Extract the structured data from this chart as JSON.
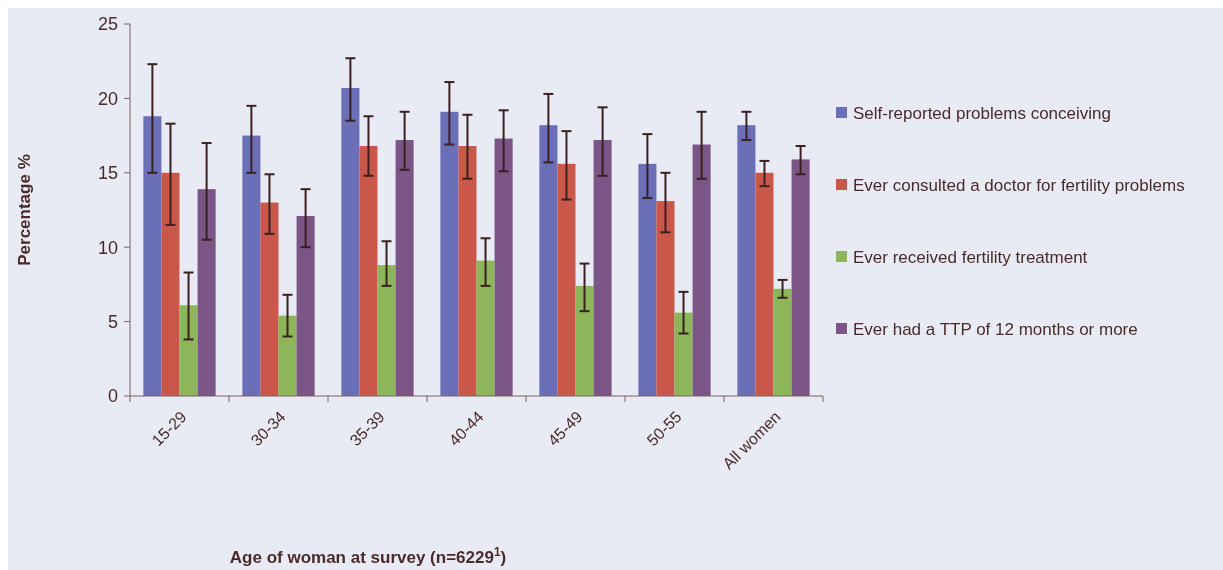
{
  "chart_data": {
    "type": "bar",
    "xlabel": "Age of woman at survey (n=6229$^{1}$)",
    "ylabel": "Percentage %",
    "categories": [
      "15-29",
      "30-34",
      "35-39",
      "40-44",
      "45-49",
      "50-55",
      "All women"
    ],
    "ylim": [
      0,
      25
    ],
    "yticks": [
      0,
      5,
      10,
      15,
      20,
      25
    ],
    "grid": false,
    "legend": "right",
    "series": [
      {
        "name": "Self-reported problems conceiving",
        "color": "#6a6fb8",
        "values": [
          18.8,
          17.5,
          20.7,
          19.1,
          18.2,
          15.6,
          18.2
        ],
        "errors": [
          [
            15.0,
            22.3
          ],
          [
            15.0,
            19.5
          ],
          [
            18.5,
            22.7
          ],
          [
            16.9,
            21.1
          ],
          [
            15.7,
            20.3
          ],
          [
            13.3,
            17.6
          ],
          [
            17.2,
            19.1
          ]
        ]
      },
      {
        "name": "Ever consulted a doctor for fertility problems",
        "color": "#c9584a",
        "values": [
          15.0,
          13.0,
          16.8,
          16.8,
          15.6,
          13.1,
          15.0
        ],
        "errors": [
          [
            11.5,
            18.3
          ],
          [
            10.9,
            14.9
          ],
          [
            14.8,
            18.8
          ],
          [
            14.6,
            18.9
          ],
          [
            13.2,
            17.8
          ],
          [
            11.0,
            15.0
          ],
          [
            14.1,
            15.8
          ]
        ]
      },
      {
        "name": "Ever received fertility treatment",
        "color": "#8db65a",
        "values": [
          6.1,
          5.4,
          8.8,
          9.1,
          7.4,
          5.6,
          7.2
        ],
        "errors": [
          [
            3.8,
            8.3
          ],
          [
            4.0,
            6.8
          ],
          [
            7.4,
            10.4
          ],
          [
            7.4,
            10.6
          ],
          [
            5.7,
            8.9
          ],
          [
            4.2,
            7.0
          ],
          [
            6.6,
            7.8
          ]
        ]
      },
      {
        "name": "Ever had a TTP of 12 months or more",
        "color": "#7a5585",
        "values": [
          13.9,
          12.1,
          17.2,
          17.3,
          17.2,
          16.9,
          15.9
        ],
        "errors": [
          [
            10.5,
            17.0
          ],
          [
            10.0,
            13.9
          ],
          [
            15.2,
            19.1
          ],
          [
            15.1,
            19.2
          ],
          [
            14.8,
            19.4
          ],
          [
            14.6,
            19.1
          ],
          [
            14.9,
            16.8
          ]
        ]
      }
    ]
  }
}
